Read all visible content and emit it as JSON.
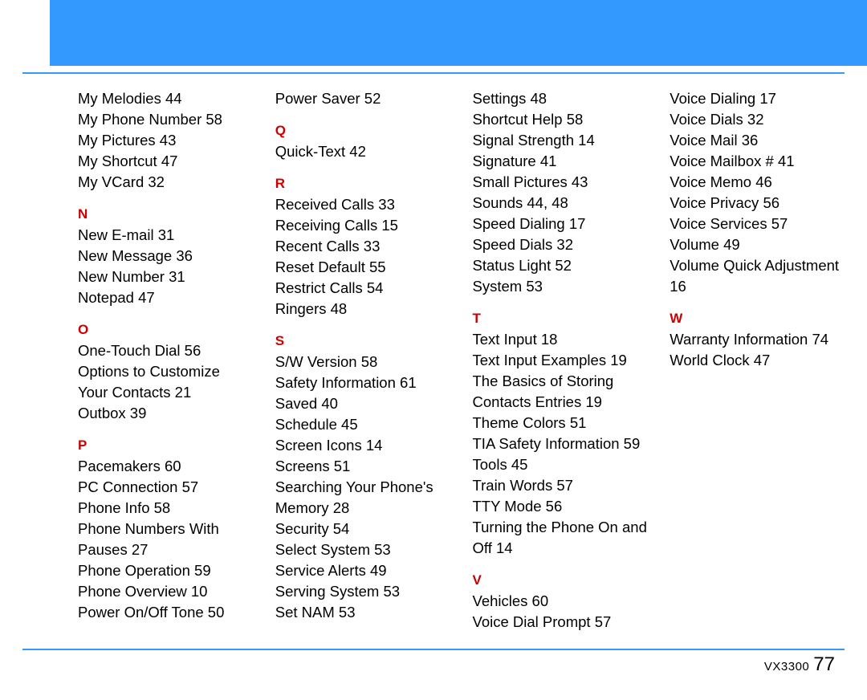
{
  "header": {
    "background_color": "#3399ff"
  },
  "letter_color": "#cc0000",
  "text_color": "#000000",
  "background_color": "#ffffff",
  "font_size_body": 18.5,
  "font_size_letter": 17,
  "line_height": 26,
  "columns": 4,
  "index": [
    {
      "type": "entry",
      "label": "My Melodies",
      "page": "44"
    },
    {
      "type": "entry",
      "label": "My Phone Number",
      "page": "58"
    },
    {
      "type": "entry",
      "label": "My Pictures",
      "page": "43"
    },
    {
      "type": "entry",
      "label": "My Shortcut",
      "page": "47"
    },
    {
      "type": "entry",
      "label": "My VCard",
      "page": "32"
    },
    {
      "type": "letter",
      "label": "N"
    },
    {
      "type": "entry",
      "label": "New E-mail",
      "page": "31"
    },
    {
      "type": "entry",
      "label": "New Message",
      "page": "36"
    },
    {
      "type": "entry",
      "label": "New Number",
      "page": "31"
    },
    {
      "type": "entry",
      "label": "Notepad",
      "page": "47"
    },
    {
      "type": "letter",
      "label": "O"
    },
    {
      "type": "entry",
      "label": "One-Touch Dial",
      "page": "56"
    },
    {
      "type": "entry",
      "label": "Options to Customize Your Contacts",
      "page": "21"
    },
    {
      "type": "entry",
      "label": "Outbox",
      "page": "39"
    },
    {
      "type": "letter",
      "label": "P"
    },
    {
      "type": "entry",
      "label": "Pacemakers",
      "page": "60"
    },
    {
      "type": "entry",
      "label": "PC Connection",
      "page": "57"
    },
    {
      "type": "entry",
      "label": "Phone Info",
      "page": "58"
    },
    {
      "type": "entry",
      "label": "Phone Numbers With Pauses",
      "page": "27"
    },
    {
      "type": "entry",
      "label": "Phone Operation",
      "page": "59"
    },
    {
      "type": "entry",
      "label": "Phone Overview",
      "page": "10"
    },
    {
      "type": "entry",
      "label": "Power On/Off Tone",
      "page": "50"
    },
    {
      "type": "entry",
      "label": "Power Saver",
      "page": "52"
    },
    {
      "type": "letter",
      "label": "Q"
    },
    {
      "type": "entry",
      "label": "Quick-Text",
      "page": "42"
    },
    {
      "type": "letter",
      "label": "R"
    },
    {
      "type": "entry",
      "label": "Received Calls",
      "page": "33"
    },
    {
      "type": "entry",
      "label": "Receiving Calls",
      "page": "15"
    },
    {
      "type": "entry",
      "label": "Recent Calls",
      "page": "33"
    },
    {
      "type": "entry",
      "label": "Reset Default",
      "page": "55"
    },
    {
      "type": "entry",
      "label": "Restrict Calls",
      "page": "54"
    },
    {
      "type": "entry",
      "label": "Ringers",
      "page": "48"
    },
    {
      "type": "letter",
      "label": "S"
    },
    {
      "type": "entry",
      "label": "S/W Version",
      "page": "58"
    },
    {
      "type": "entry",
      "label": "Safety Information",
      "page": "61"
    },
    {
      "type": "entry",
      "label": "Saved",
      "page": "40"
    },
    {
      "type": "entry",
      "label": "Schedule",
      "page": "45"
    },
    {
      "type": "entry",
      "label": "Screen Icons",
      "page": "14"
    },
    {
      "type": "entry",
      "label": "Screens",
      "page": "51"
    },
    {
      "type": "entry",
      "label": "Searching Your Phone's Memory",
      "page": "28"
    },
    {
      "type": "entry",
      "label": "Security",
      "page": "54"
    },
    {
      "type": "entry",
      "label": "Select System",
      "page": "53"
    },
    {
      "type": "entry",
      "label": "Service Alerts",
      "page": "49"
    },
    {
      "type": "entry",
      "label": "Serving System",
      "page": "53"
    },
    {
      "type": "entry",
      "label": "Set NAM",
      "page": "53"
    },
    {
      "type": "entry",
      "label": "Settings",
      "page": "48"
    },
    {
      "type": "entry",
      "label": "Shortcut Help",
      "page": "58"
    },
    {
      "type": "entry",
      "label": "Signal Strength",
      "page": "14"
    },
    {
      "type": "entry",
      "label": "Signature",
      "page": "41"
    },
    {
      "type": "entry",
      "label": "Small Pictures",
      "page": "43"
    },
    {
      "type": "entry",
      "label": "Sounds",
      "page": "44, 48"
    },
    {
      "type": "entry",
      "label": "Speed Dialing",
      "page": "17"
    },
    {
      "type": "entry",
      "label": "Speed Dials",
      "page": "32"
    },
    {
      "type": "entry",
      "label": "Status Light",
      "page": "52"
    },
    {
      "type": "entry",
      "label": "System",
      "page": "53"
    },
    {
      "type": "letter",
      "label": "T"
    },
    {
      "type": "entry",
      "label": "Text Input",
      "page": "18"
    },
    {
      "type": "entry",
      "label": "Text Input Examples",
      "page": "19"
    },
    {
      "type": "entry",
      "label": "The Basics of Storing Contacts Entries",
      "page": "19"
    },
    {
      "type": "entry",
      "label": "Theme Colors",
      "page": "51"
    },
    {
      "type": "entry",
      "label": "TIA Safety Information",
      "page": "59"
    },
    {
      "type": "entry",
      "label": "Tools",
      "page": "45"
    },
    {
      "type": "entry",
      "label": "Train Words",
      "page": "57"
    },
    {
      "type": "entry",
      "label": "TTY Mode",
      "page": "56"
    },
    {
      "type": "entry",
      "label": "Turning the Phone On and Off",
      "page": "14"
    },
    {
      "type": "letter",
      "label": "V"
    },
    {
      "type": "entry",
      "label": "Vehicles",
      "page": "60"
    },
    {
      "type": "entry",
      "label": "Voice Dial Prompt",
      "page": "57"
    },
    {
      "type": "entry",
      "label": "Voice Dialing",
      "page": "17"
    },
    {
      "type": "entry",
      "label": "Voice Dials",
      "page": "32"
    },
    {
      "type": "entry",
      "label": "Voice Mail",
      "page": "36"
    },
    {
      "type": "entry",
      "label": "Voice Mailbox #",
      "page": "41"
    },
    {
      "type": "entry",
      "label": "Voice Memo",
      "page": "46"
    },
    {
      "type": "entry",
      "label": "Voice Privacy",
      "page": "56"
    },
    {
      "type": "entry",
      "label": "Voice Services",
      "page": "57"
    },
    {
      "type": "entry",
      "label": "Volume",
      "page": "49"
    },
    {
      "type": "entry",
      "label": "Volume Quick Adjustment",
      "page": "16"
    },
    {
      "type": "letter",
      "label": "W"
    },
    {
      "type": "entry",
      "label": "Warranty Information",
      "page": "74"
    },
    {
      "type": "entry",
      "label": "World Clock",
      "page": "47"
    }
  ],
  "footer": {
    "model": "VX3300",
    "page_number": "77"
  }
}
